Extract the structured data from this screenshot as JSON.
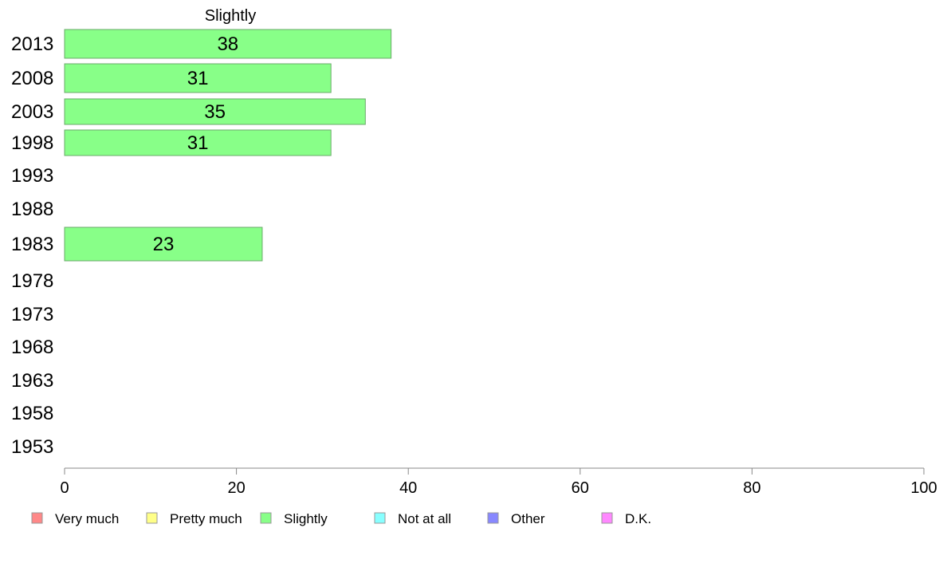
{
  "chart_data": {
    "type": "bar",
    "orientation": "horizontal",
    "title": "Slightly",
    "categories": [
      "2013",
      "2008",
      "2003",
      "1998",
      "1993",
      "1988",
      "1983",
      "1978",
      "1973",
      "1968",
      "1963",
      "1958",
      "1953"
    ],
    "series": [
      {
        "name": "Slightly",
        "values": [
          38,
          31,
          35,
          31,
          null,
          null,
          23,
          null,
          null,
          null,
          null,
          null,
          null
        ],
        "color": "#88ff88"
      }
    ],
    "xlim": [
      0,
      100
    ],
    "xticks": [
      "0",
      "20",
      "40",
      "60",
      "80",
      "100"
    ],
    "grid": false,
    "legend_position": "bottom",
    "legend": [
      {
        "label": "Very much",
        "color": "#ff8888"
      },
      {
        "label": "Pretty much",
        "color": "#ffff88"
      },
      {
        "label": "Slightly",
        "color": "#88ff88"
      },
      {
        "label": "Not at all",
        "color": "#88ffff"
      },
      {
        "label": "Other",
        "color": "#8888ff"
      },
      {
        "label": "D.K.",
        "color": "#ff88ff"
      }
    ]
  }
}
